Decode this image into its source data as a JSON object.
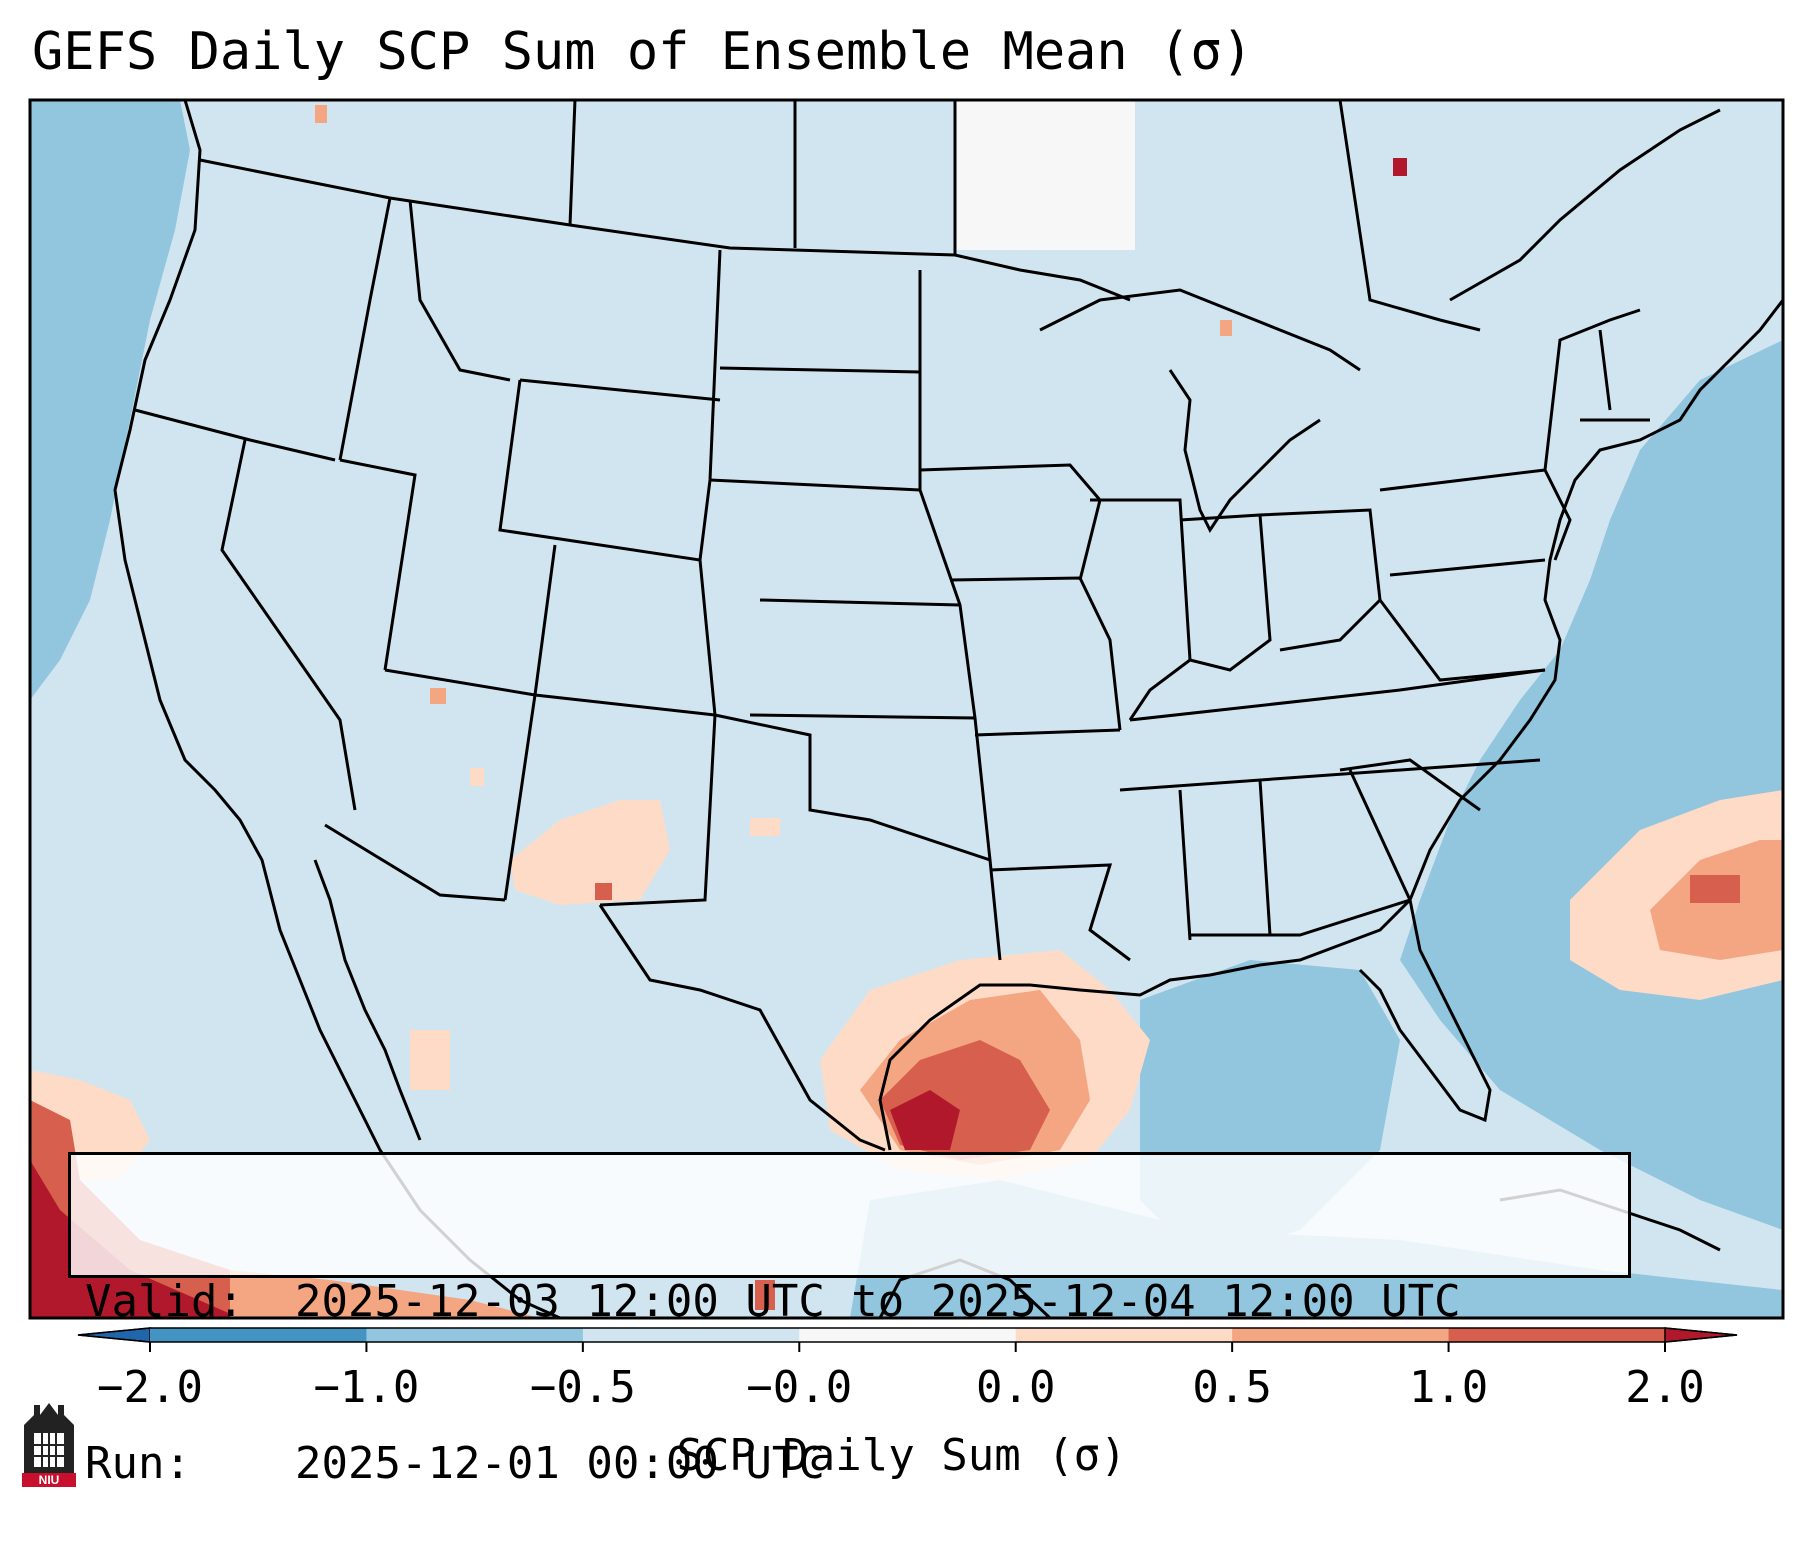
{
  "title": "GEFS Daily SCP Sum of Ensemble Mean (σ)",
  "info": {
    "valid_label": "Valid:",
    "valid_value": "2025-12-03 12:00 UTC to 2025-12-04 12:00 UTC",
    "run_label": "Run:",
    "run_value": "2025-12-01 00:00 UTC"
  },
  "colorbar": {
    "label": "SCP Daily Sum (σ)",
    "ticks": [
      "−2.0",
      "−1.0",
      "−0.5",
      "−0.0",
      "0.0",
      "0.5",
      "1.0",
      "2.0"
    ],
    "colors": [
      "#4393c3",
      "#92c5de",
      "#d1e5f0",
      "#f7f7f7",
      "#fddbc7",
      "#f4a582",
      "#d6604d"
    ],
    "under_color": "#2166ac",
    "over_color": "#b2182b"
  },
  "colors": {
    "land": "#d1e5f0",
    "ocean": "#92c5de",
    "white": "#f7f7f7",
    "light_red": "#fddbc7",
    "mid_red": "#f4a582",
    "red": "#d6604d",
    "dark_red": "#b2182b"
  },
  "logo_text": "NIU"
}
